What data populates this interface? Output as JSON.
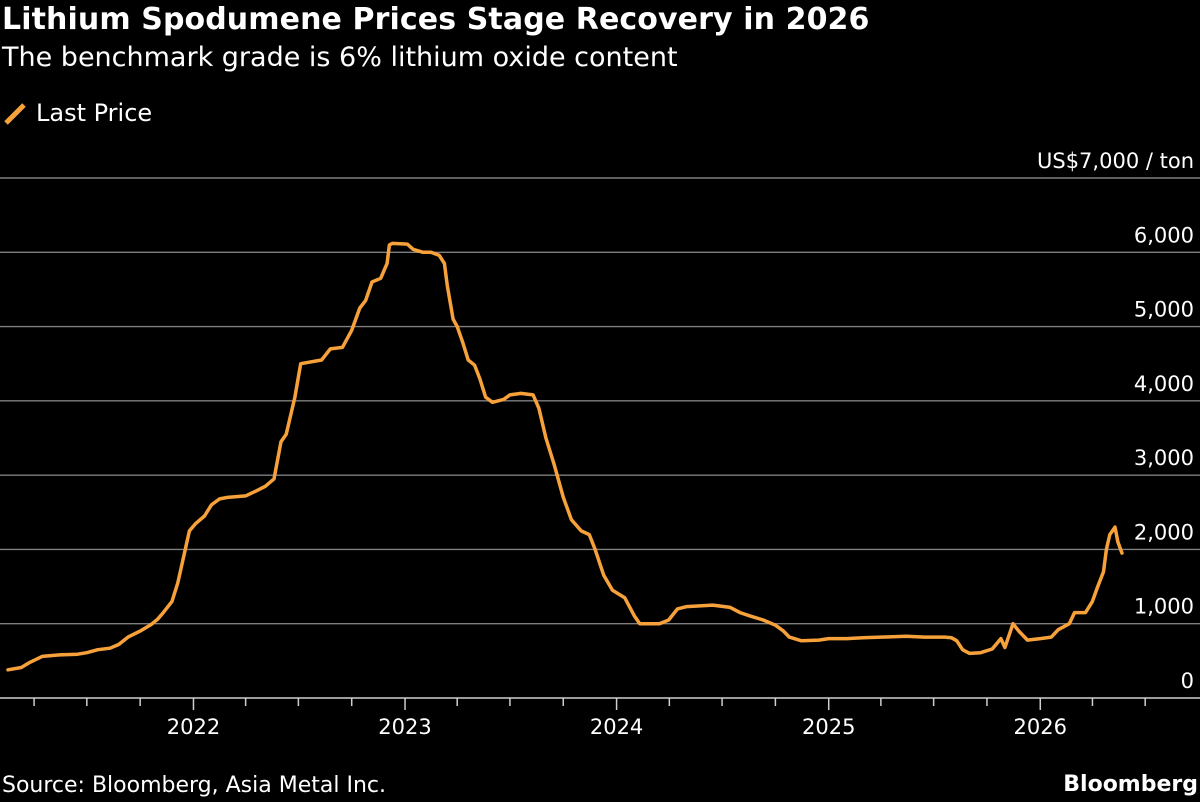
{
  "header": {
    "title": "Lithium Spodumene Prices Stage Recovery in 2026",
    "subtitle": "The benchmark grade is 6% lithium oxide content"
  },
  "legend": {
    "series_label": "Last Price"
  },
  "footer": {
    "source": "Source: Bloomberg, Asia Metal Inc.",
    "brand": "Bloomberg"
  },
  "colors": {
    "background": "#000000",
    "line": "#f7a13b",
    "grid": "#7f7f7f",
    "text": "#ffffff"
  },
  "chart_data": {
    "type": "line",
    "title": "Lithium Spodumene Prices Stage Recovery in 2026",
    "subtitle": "The benchmark grade is 6% lithium oxide content",
    "ylabel": "",
    "y_unit_label": "US$7,000 / ton",
    "ylim": [
      0,
      7000
    ],
    "y_ticks": [
      0,
      1000,
      2000,
      3000,
      4000,
      5000,
      6000,
      7000
    ],
    "y_tick_labels": [
      "0",
      "1,000",
      "2,000",
      "3,000",
      "4,000",
      "5,000",
      "6,000",
      "US$7,000 / ton"
    ],
    "x_ticks": [
      "2022",
      "2023",
      "2024",
      "2025",
      "2026"
    ],
    "x_range": [
      "2021-02-01",
      "2026-06-01"
    ],
    "grid": "horizontal",
    "legend_position": "top-left",
    "series": [
      {
        "name": "Last Price",
        "points": [
          [
            "2021-02-15",
            380
          ],
          [
            "2021-03-10",
            410
          ],
          [
            "2021-03-25",
            480
          ],
          [
            "2021-04-15",
            560
          ],
          [
            "2021-05-15",
            580
          ],
          [
            "2021-06-15",
            590
          ],
          [
            "2021-07-01",
            610
          ],
          [
            "2021-07-20",
            650
          ],
          [
            "2021-08-10",
            670
          ],
          [
            "2021-08-25",
            720
          ],
          [
            "2021-09-10",
            820
          ],
          [
            "2021-10-01",
            900
          ],
          [
            "2021-10-20",
            990
          ],
          [
            "2021-10-31",
            1060
          ],
          [
            "2021-11-10",
            1150
          ],
          [
            "2021-11-25",
            1300
          ],
          [
            "2021-12-05",
            1550
          ],
          [
            "2021-12-15",
            1900
          ],
          [
            "2021-12-25",
            2250
          ],
          [
            "2022-01-05",
            2350
          ],
          [
            "2022-01-20",
            2450
          ],
          [
            "2022-02-01",
            2600
          ],
          [
            "2022-02-15",
            2680
          ],
          [
            "2022-03-01",
            2700
          ],
          [
            "2022-04-01",
            2720
          ],
          [
            "2022-04-20",
            2790
          ],
          [
            "2022-05-05",
            2850
          ],
          [
            "2022-05-20",
            2950
          ],
          [
            "2022-06-01",
            3450
          ],
          [
            "2022-06-10",
            3550
          ],
          [
            "2022-06-25",
            4050
          ],
          [
            "2022-07-05",
            4500
          ],
          [
            "2022-08-10",
            4550
          ],
          [
            "2022-08-25",
            4700
          ],
          [
            "2022-09-15",
            4720
          ],
          [
            "2022-10-01",
            4950
          ],
          [
            "2022-10-15",
            5250
          ],
          [
            "2022-10-25",
            5350
          ],
          [
            "2022-11-05",
            5600
          ],
          [
            "2022-11-20",
            5650
          ],
          [
            "2022-12-01",
            5850
          ],
          [
            "2022-12-05",
            6100
          ],
          [
            "2022-12-10",
            6120
          ],
          [
            "2023-01-05",
            6110
          ],
          [
            "2023-01-15",
            6040
          ],
          [
            "2023-02-01",
            6000
          ],
          [
            "2023-02-15",
            6000
          ],
          [
            "2023-03-01",
            5960
          ],
          [
            "2023-03-10",
            5850
          ],
          [
            "2023-03-15",
            5550
          ],
          [
            "2023-03-25",
            5100
          ],
          [
            "2023-04-01",
            5000
          ],
          [
            "2023-04-10",
            4800
          ],
          [
            "2023-04-20",
            4550
          ],
          [
            "2023-05-01",
            4480
          ],
          [
            "2023-05-10",
            4300
          ],
          [
            "2023-05-20",
            4050
          ],
          [
            "2023-06-01",
            3980
          ],
          [
            "2023-06-20",
            4020
          ],
          [
            "2023-07-01",
            4080
          ],
          [
            "2023-07-20",
            4100
          ],
          [
            "2023-08-10",
            4080
          ],
          [
            "2023-08-20",
            3900
          ],
          [
            "2023-09-01",
            3500
          ],
          [
            "2023-09-15",
            3150
          ],
          [
            "2023-10-01",
            2700
          ],
          [
            "2023-10-15",
            2400
          ],
          [
            "2023-11-01",
            2250
          ],
          [
            "2023-11-15",
            2200
          ],
          [
            "2023-11-25",
            2000
          ],
          [
            "2023-12-10",
            1650
          ],
          [
            "2023-12-25",
            1450
          ],
          [
            "2024-01-15",
            1350
          ],
          [
            "2024-02-01",
            1100
          ],
          [
            "2024-02-10",
            1000
          ],
          [
            "2024-03-15",
            1000
          ],
          [
            "2024-03-31",
            1050
          ],
          [
            "2024-04-15",
            1200
          ],
          [
            "2024-05-01",
            1230
          ],
          [
            "2024-06-15",
            1250
          ],
          [
            "2024-07-15",
            1220
          ],
          [
            "2024-08-01",
            1150
          ],
          [
            "2024-08-20",
            1100
          ],
          [
            "2024-09-10",
            1050
          ],
          [
            "2024-10-01",
            980
          ],
          [
            "2024-10-15",
            900
          ],
          [
            "2024-10-25",
            820
          ],
          [
            "2024-11-15",
            770
          ],
          [
            "2024-12-15",
            780
          ],
          [
            "2025-01-01",
            800
          ],
          [
            "2025-02-01",
            800
          ],
          [
            "2025-03-01",
            810
          ],
          [
            "2025-04-01",
            820
          ],
          [
            "2025-05-15",
            830
          ],
          [
            "2025-06-15",
            820
          ],
          [
            "2025-07-20",
            820
          ],
          [
            "2025-08-01",
            810
          ],
          [
            "2025-08-10",
            770
          ],
          [
            "2025-08-20",
            650
          ],
          [
            "2025-09-01",
            600
          ],
          [
            "2025-09-20",
            610
          ],
          [
            "2025-10-10",
            660
          ],
          [
            "2025-10-25",
            800
          ],
          [
            "2025-11-01",
            680
          ],
          [
            "2025-11-15",
            1000
          ],
          [
            "2025-11-25",
            900
          ],
          [
            "2025-12-10",
            780
          ],
          [
            "2026-01-01",
            800
          ],
          [
            "2026-01-20",
            820
          ],
          [
            "2026-02-01",
            920
          ],
          [
            "2026-02-20",
            1000
          ],
          [
            "2026-03-01",
            1150
          ],
          [
            "2026-03-20",
            1150
          ],
          [
            "2026-04-01",
            1300
          ],
          [
            "2026-04-10",
            1500
          ],
          [
            "2026-04-20",
            1700
          ],
          [
            "2026-04-25",
            2000
          ],
          [
            "2026-05-01",
            2200
          ],
          [
            "2026-05-10",
            2300
          ],
          [
            "2026-05-15",
            2100
          ],
          [
            "2026-05-22",
            1950
          ]
        ]
      }
    ]
  }
}
